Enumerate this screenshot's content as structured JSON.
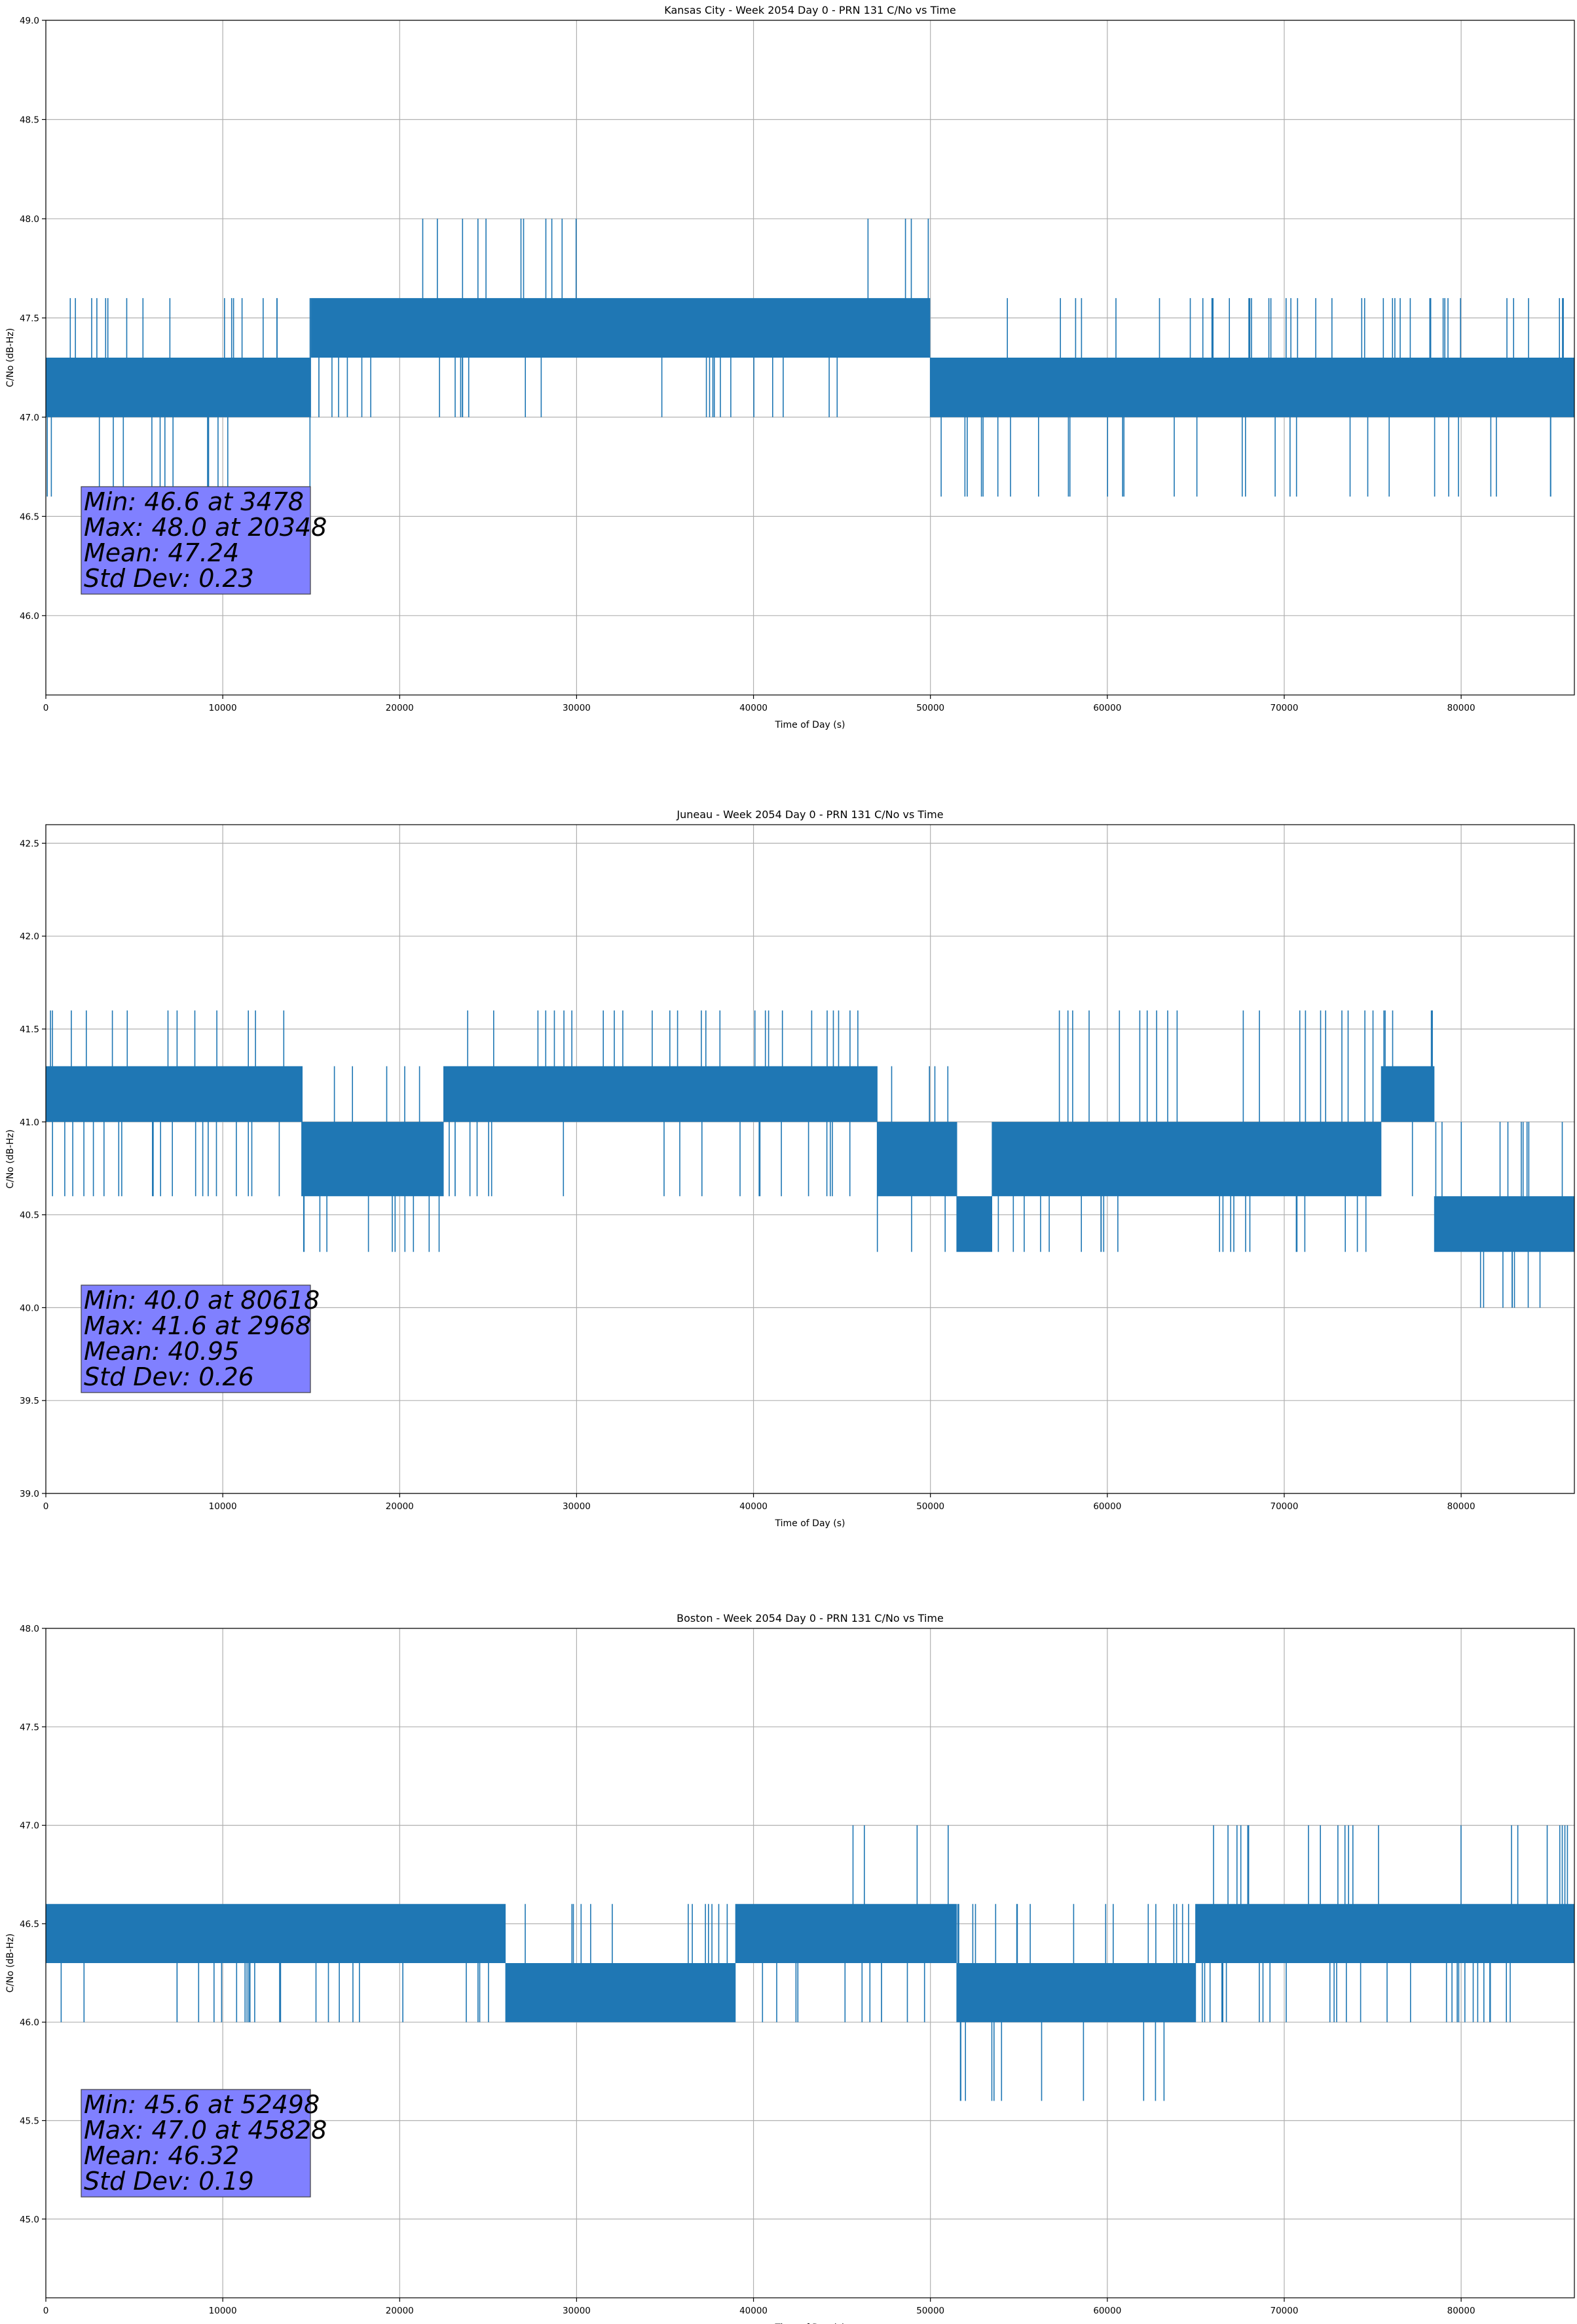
{
  "chart_data": [
    {
      "type": "line",
      "title": "Kansas City - Week 2054 Day 0 - PRN 131 C/No vs Time",
      "xlabel": "Time of Day (s)",
      "ylabel": "C/No (dB-Hz)",
      "xlim": [
        0,
        86400
      ],
      "ylim": [
        45.6,
        49.0
      ],
      "xticks": [
        0,
        10000,
        20000,
        30000,
        40000,
        50000,
        60000,
        70000,
        80000
      ],
      "yticks": [
        46.0,
        46.5,
        47.0,
        47.5,
        48.0,
        48.5,
        49.0
      ],
      "grid": true,
      "line_color": "#1f77b4",
      "stats_box_color": "#8080ff",
      "series": [
        {
          "levels": [
            46.6,
            47.0,
            47.3,
            47.6,
            48.0
          ],
          "segments": [
            {
              "x": [
                0,
                15000
              ],
              "base": [
                47.0,
                47.3
              ],
              "dense_low": true,
              "spikes_up": [
                47.6
              ],
              "spikes_down": [
                46.6
              ]
            },
            {
              "x": [
                15000,
                20000
              ],
              "base": [
                47.3,
                47.6
              ],
              "spikes_down": [
                47.0
              ]
            },
            {
              "x": [
                20000,
                30000
              ],
              "base": [
                47.3,
                47.6
              ],
              "spikes_up": [
                48.0
              ],
              "spikes_down": [
                47.0
              ]
            },
            {
              "x": [
                30000,
                34500
              ],
              "base": [
                47.3,
                47.6
              ]
            },
            {
              "x": [
                34500,
                45000
              ],
              "base": [
                47.3,
                47.6
              ],
              "spikes_down": [
                47.0
              ]
            },
            {
              "x": [
                45000,
                50000
              ],
              "base": [
                47.3,
                47.6
              ],
              "spikes_up": [
                48.0
              ]
            },
            {
              "x": [
                50000,
                86400
              ],
              "base": [
                47.0,
                47.3
              ],
              "dense_low": true,
              "spikes_up": [
                47.6
              ],
              "spikes_down": [
                46.6
              ]
            }
          ]
        }
      ],
      "stats": [
        "Min: 46.6 at 3478",
        "Max: 48.0 at 20348",
        "Mean: 47.24",
        "Std Dev: 0.23"
      ]
    },
    {
      "type": "line",
      "title": "Juneau - Week 2054 Day 0 - PRN 131 C/No vs Time",
      "xlabel": "Time of Day (s)",
      "ylabel": "C/No (dB-Hz)",
      "xlim": [
        0,
        86400
      ],
      "ylim": [
        39.0,
        42.6
      ],
      "xticks": [
        0,
        10000,
        20000,
        30000,
        40000,
        50000,
        60000,
        70000,
        80000
      ],
      "yticks": [
        39.0,
        39.5,
        40.0,
        40.5,
        41.0,
        41.5,
        42.0,
        42.5
      ],
      "grid": true,
      "line_color": "#1f77b4",
      "stats_box_color": "#8080ff",
      "series": [
        {
          "levels": [
            40.0,
            40.3,
            40.6,
            41.0,
            41.3,
            41.6
          ],
          "segments": [
            {
              "x": [
                0,
                14500
              ],
              "base": [
                41.0,
                41.3
              ],
              "dense_low": true,
              "spikes_up": [
                41.6
              ],
              "spikes_down": [
                40.6
              ]
            },
            {
              "x": [
                14500,
                22500
              ],
              "base": [
                40.6,
                41.0
              ],
              "spikes_up": [
                41.3
              ],
              "spikes_down": [
                40.3
              ]
            },
            {
              "x": [
                22500,
                47000
              ],
              "base": [
                41.0,
                41.3
              ],
              "dense_low": true,
              "spikes_up": [
                41.6
              ],
              "spikes_down": [
                40.6
              ]
            },
            {
              "x": [
                47000,
                51500
              ],
              "base": [
                40.6,
                41.0
              ],
              "spikes_up": [
                41.3
              ],
              "spikes_down": [
                40.3
              ]
            },
            {
              "x": [
                51500,
                53500
              ],
              "base": [
                40.3,
                40.6
              ]
            },
            {
              "x": [
                53500,
                75500
              ],
              "base": [
                40.6,
                41.0
              ],
              "dense_high": true,
              "spikes_up": [
                41.6
              ],
              "spikes_down": [
                40.3
              ]
            },
            {
              "x": [
                75500,
                78500
              ],
              "base": [
                41.0,
                41.3
              ],
              "spikes_up": [
                41.6
              ],
              "spikes_down": [
                40.6
              ]
            },
            {
              "x": [
                78500,
                86400
              ],
              "base": [
                40.3,
                40.6
              ],
              "spikes_up": [
                41.0
              ],
              "spikes_down": [
                40.0
              ]
            }
          ]
        }
      ],
      "stats": [
        "Min: 40.0 at 80618",
        "Max: 41.6 at 2968",
        "Mean: 40.95",
        "Std Dev: 0.26"
      ]
    },
    {
      "type": "line",
      "title": "Boston - Week 2054 Day 0 - PRN 131 C/No vs Time",
      "xlabel": "Time of Day (s)",
      "ylabel": "C/No (dB-Hz)",
      "xlim": [
        0,
        86400
      ],
      "ylim": [
        44.6,
        48.0
      ],
      "xticks": [
        0,
        10000,
        20000,
        30000,
        40000,
        50000,
        60000,
        70000,
        80000
      ],
      "yticks": [
        45.0,
        45.5,
        46.0,
        46.5,
        47.0,
        47.5,
        48.0
      ],
      "grid": true,
      "line_color": "#1f77b4",
      "stats_box_color": "#8080ff",
      "series": [
        {
          "levels": [
            45.6,
            46.0,
            46.3,
            46.6,
            47.0
          ],
          "segments": [
            {
              "x": [
                0,
                26000
              ],
              "base": [
                46.3,
                46.6
              ],
              "spikes_down": [
                46.0
              ]
            },
            {
              "x": [
                26000,
                39000
              ],
              "base": [
                46.0,
                46.3
              ],
              "dense_low": true,
              "spikes_up": [
                46.6
              ]
            },
            {
              "x": [
                39000,
                45500
              ],
              "base": [
                46.3,
                46.6
              ],
              "spikes_down": [
                46.0
              ]
            },
            {
              "x": [
                45500,
                51500
              ],
              "base": [
                46.3,
                46.6
              ],
              "spikes_up": [
                47.0
              ],
              "spikes_down": [
                46.0
              ]
            },
            {
              "x": [
                51500,
                65000
              ],
              "base": [
                46.0,
                46.3
              ],
              "dense_low": true,
              "spikes_up": [
                46.6
              ],
              "spikes_down": [
                45.6
              ]
            },
            {
              "x": [
                65000,
                86400
              ],
              "base": [
                46.3,
                46.6
              ],
              "dense_low": true,
              "spikes_up": [
                47.0
              ],
              "spikes_down": [
                46.0
              ]
            }
          ]
        }
      ],
      "stats": [
        "Min: 45.6 at 52498",
        "Max: 47.0 at 45828",
        "Mean: 46.32",
        "Std Dev: 0.19"
      ]
    }
  ]
}
